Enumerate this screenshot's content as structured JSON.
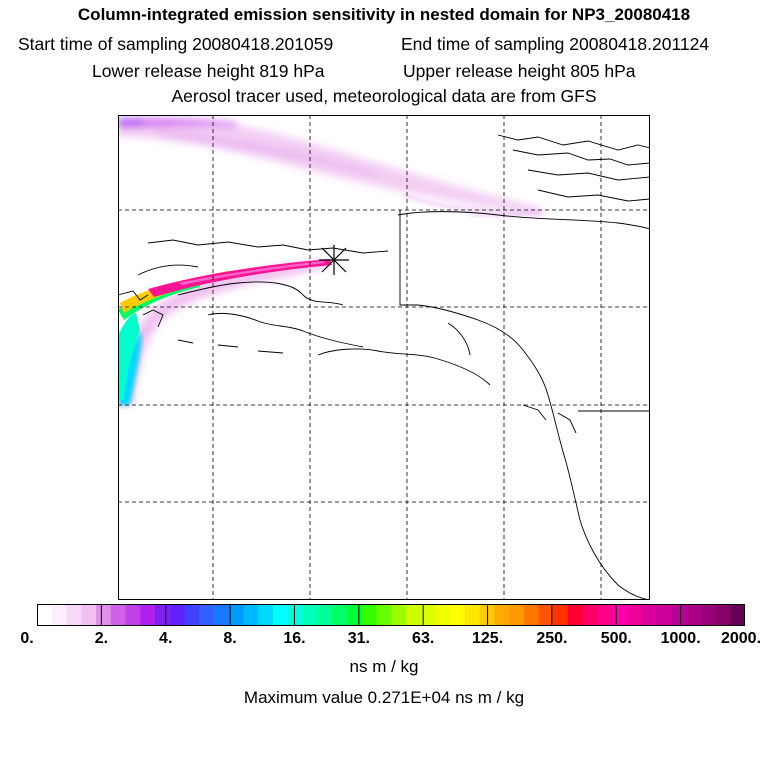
{
  "title": "Column-integrated emission sensitivity in nested domain for NP3_20080418",
  "sampling": {
    "start": "Start time of sampling 20080418.201059",
    "end": "End time of sampling 20080418.201124"
  },
  "release": {
    "lower": "Lower release height  819 hPa",
    "upper": "Upper release height  805 hPa"
  },
  "tracer_info": "Aerosol tracer used, meteorological data are from GFS",
  "map": {
    "region": "Alaska / North Pacific / Western Canada",
    "release_marker": "asterisk",
    "grid": "dashed graticule",
    "plume_colors": [
      "#ff00aa",
      "#ff1493",
      "#ffa500",
      "#ffee00",
      "#00ff66",
      "#00ffff",
      "#e6a8f0"
    ]
  },
  "colorbar": {
    "labels": [
      "0.",
      "2.",
      "4.",
      "8.",
      "16.",
      "31.",
      "63.",
      "125.",
      "250.",
      "500.",
      "1000.",
      "2000."
    ],
    "colors": [
      "#ffffff",
      "#ffeefe",
      "#f8d8f8",
      "#f0c0f0",
      "#e090e8",
      "#d060e8",
      "#c040e8",
      "#b020f0",
      "#8020f0",
      "#6020f8",
      "#4040ff",
      "#3060ff",
      "#1878ff",
      "#0099ff",
      "#00b8ff",
      "#00d8ff",
      "#00ffff",
      "#00ffdd",
      "#00ffbb",
      "#00ff99",
      "#00ff66",
      "#00ff33",
      "#33ff00",
      "#66ff00",
      "#99ff00",
      "#ccff00",
      "#ddff00",
      "#f0ff00",
      "#ffff00",
      "#ffe600",
      "#ffcc00",
      "#ffaa00",
      "#ff9900",
      "#ff7700",
      "#ff5500",
      "#ff3300",
      "#ff0033",
      "#ff0066",
      "#ff0088",
      "#ff00aa",
      "#ee0099",
      "#dd0099",
      "#cc0099",
      "#bb0099",
      "#aa0088",
      "#990077",
      "#880066",
      "#660055"
    ]
  },
  "units": "ns m / kg",
  "max_value": "Maximum value  0.271E+04 ns m / kg"
}
